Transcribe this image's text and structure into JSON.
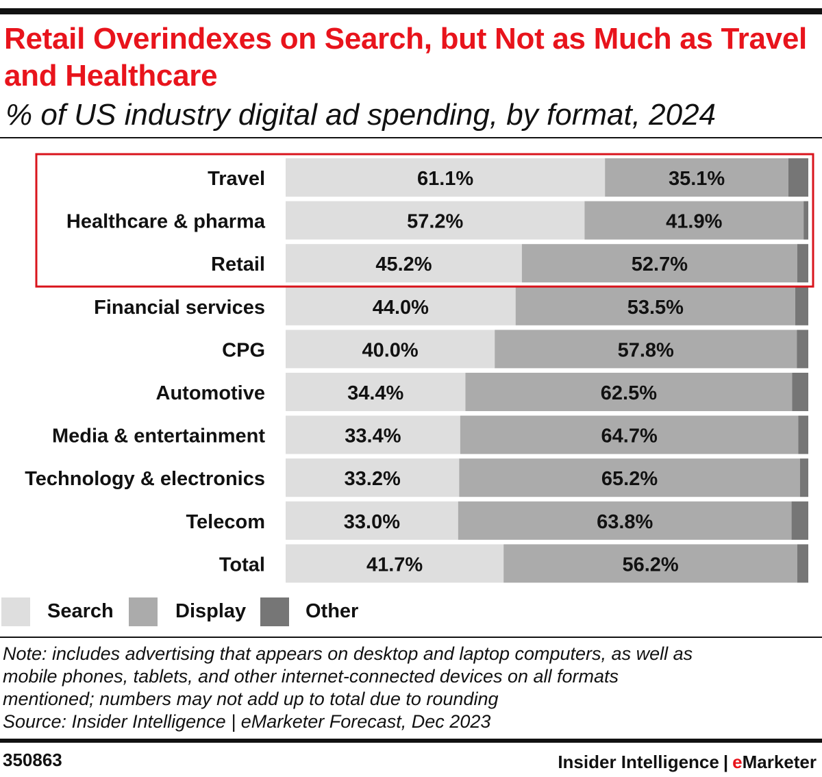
{
  "header": {
    "title": "Retail Overindexes on Search, but Not as Much as Travel and Healthcare",
    "subtitle": "% of US industry digital ad spending, by format, 2024"
  },
  "colors": {
    "title": "#e8141c",
    "search": "#dedede",
    "display": "#ababab",
    "other": "#767676",
    "highlight_box": "#d9141c",
    "text": "#111111"
  },
  "chart_data": {
    "type": "bar",
    "orientation": "horizontal",
    "stacked": true,
    "title": "Retail Overindexes on Search, but Not as Much as Travel and Healthcare",
    "subtitle": "% of US industry digital ad spending, by format, 2024",
    "xlim": [
      0,
      100
    ],
    "grid": false,
    "legend_position": "bottom-left",
    "categories": [
      "Travel",
      "Healthcare & pharma",
      "Retail",
      "Financial services",
      "CPG",
      "Automotive",
      "Media & entertainment",
      "Technology & electronics",
      "Telecom",
      "Total"
    ],
    "series": [
      {
        "name": "Search",
        "values": [
          61.1,
          57.2,
          45.2,
          44.0,
          40.0,
          34.4,
          33.4,
          33.2,
          33.0,
          41.7
        ],
        "labels": [
          "61.1%",
          "57.2%",
          "45.2%",
          "44.0%",
          "40.0%",
          "34.4%",
          "33.4%",
          "33.2%",
          "33.0%",
          "41.7%"
        ]
      },
      {
        "name": "Display",
        "values": [
          35.1,
          41.9,
          52.7,
          53.5,
          57.8,
          62.5,
          64.7,
          65.2,
          63.8,
          56.2
        ],
        "labels": [
          "35.1%",
          "41.9%",
          "52.7%",
          "53.5%",
          "57.8%",
          "62.5%",
          "64.7%",
          "65.2%",
          "63.8%",
          "56.2%"
        ]
      },
      {
        "name": "Other",
        "values": [
          3.8,
          0.9,
          2.1,
          2.5,
          2.2,
          3.1,
          1.9,
          1.6,
          3.2,
          2.1
        ]
      }
    ],
    "highlighted_categories": [
      "Travel",
      "Healthcare & pharma",
      "Retail"
    ]
  },
  "legend": {
    "items": [
      {
        "label": "Search"
      },
      {
        "label": "Display"
      },
      {
        "label": "Other"
      }
    ]
  },
  "footer": {
    "note_lines": [
      "Note: includes advertising that appears on desktop and laptop computers, as well as",
      "mobile phones, tablets, and other internet-connected devices on all formats",
      "mentioned; numbers may not add up to total due to rounding"
    ],
    "source": "Source: Insider Intelligence | eMarketer Forecast, Dec 2023",
    "chart_id": "350863",
    "brand_left": "Insider Intelligence",
    "brand_sep": "|",
    "brand_e": "e",
    "brand_rest": "Marketer"
  }
}
